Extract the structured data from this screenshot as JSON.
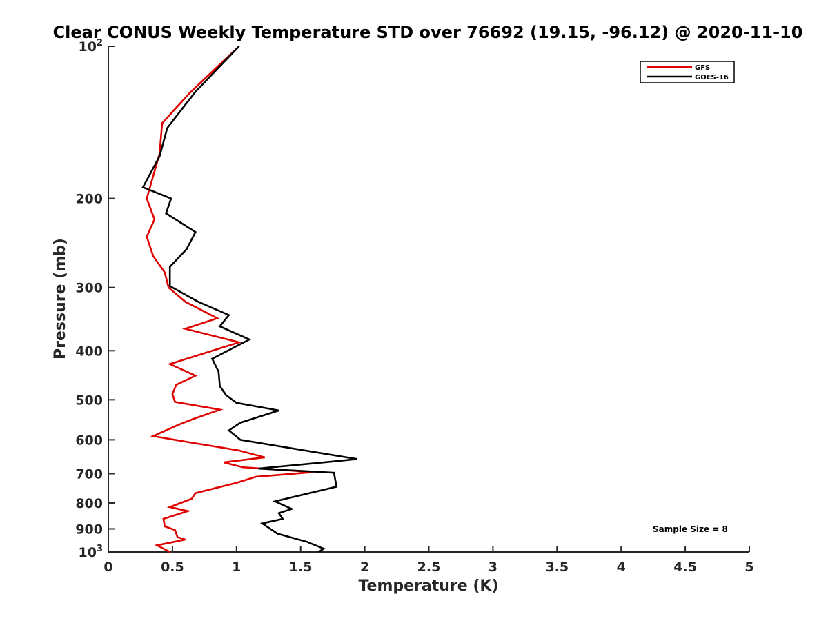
{
  "chart_data": {
    "type": "line",
    "title": "Clear CONUS Weekly Temperature STD over 76692 (19.15, -96.12) @ 2020-11-10",
    "xlabel": "Temperature (K)",
    "ylabel": "Pressure (mb)",
    "xlim": [
      0,
      5
    ],
    "ylim": [
      100,
      1000
    ],
    "yscale": "log",
    "yreversed": true,
    "x_ticks": [
      0,
      0.5,
      1,
      1.5,
      2,
      2.5,
      3,
      3.5,
      4,
      4.5,
      5
    ],
    "x_tick_labels": [
      "0",
      "0.5",
      "1",
      "1.5",
      "2",
      "2.5",
      "3",
      "3.5",
      "4",
      "4.5",
      "5"
    ],
    "y_ticks": [
      {
        "value": 100,
        "base": "10",
        "exp": "2"
      },
      {
        "value": 200,
        "label": "200"
      },
      {
        "value": 300,
        "label": "300"
      },
      {
        "value": 400,
        "label": "400"
      },
      {
        "value": 500,
        "label": "500"
      },
      {
        "value": 600,
        "label": "600"
      },
      {
        "value": 700,
        "label": "700"
      },
      {
        "value": 800,
        "label": "800"
      },
      {
        "value": 900,
        "label": "900"
      },
      {
        "value": 1000,
        "base": "10",
        "exp": "3"
      }
    ],
    "grid": false,
    "legend_position": "top-right",
    "series": [
      {
        "name": "GFS",
        "color": "#e00000",
        "points": [
          [
            1.02,
            100
          ],
          [
            0.63,
            124
          ],
          [
            0.42,
            142
          ],
          [
            0.4,
            163
          ],
          [
            0.3,
            200
          ],
          [
            0.36,
            220
          ],
          [
            0.3,
            238
          ],
          [
            0.35,
            260
          ],
          [
            0.44,
            280
          ],
          [
            0.47,
            300
          ],
          [
            0.6,
            320
          ],
          [
            0.85,
            345
          ],
          [
            0.6,
            362
          ],
          [
            1.02,
            385
          ],
          [
            0.48,
            425
          ],
          [
            0.68,
            448
          ],
          [
            0.53,
            467
          ],
          [
            0.5,
            487
          ],
          [
            0.52,
            505
          ],
          [
            0.87,
            523
          ],
          [
            0.66,
            546
          ],
          [
            0.55,
            560
          ],
          [
            0.35,
            590
          ],
          [
            0.6,
            605
          ],
          [
            1.02,
            630
          ],
          [
            1.22,
            650
          ],
          [
            0.9,
            665
          ],
          [
            1.05,
            680
          ],
          [
            1.6,
            695
          ],
          [
            1.15,
            710
          ],
          [
            1.0,
            730
          ],
          [
            0.68,
            765
          ],
          [
            0.65,
            785
          ],
          [
            0.48,
            815
          ],
          [
            0.62,
            830
          ],
          [
            0.43,
            860
          ],
          [
            0.44,
            890
          ],
          [
            0.52,
            905
          ],
          [
            0.54,
            935
          ],
          [
            0.6,
            945
          ],
          [
            0.38,
            970
          ],
          [
            0.48,
            1000
          ]
        ]
      },
      {
        "name": "GOES-16",
        "color": "#000000",
        "points": [
          [
            1.02,
            100
          ],
          [
            0.68,
            123
          ],
          [
            0.46,
            145
          ],
          [
            0.4,
            165
          ],
          [
            0.27,
            190
          ],
          [
            0.49,
            200
          ],
          [
            0.45,
            214
          ],
          [
            0.68,
            233
          ],
          [
            0.61,
            252
          ],
          [
            0.48,
            273
          ],
          [
            0.48,
            298
          ],
          [
            0.7,
            320
          ],
          [
            0.94,
            340
          ],
          [
            0.87,
            358
          ],
          [
            1.1,
            380
          ],
          [
            0.81,
            415
          ],
          [
            0.86,
            440
          ],
          [
            0.87,
            470
          ],
          [
            0.92,
            490
          ],
          [
            1.0,
            507
          ],
          [
            1.33,
            525
          ],
          [
            1.03,
            555
          ],
          [
            0.94,
            575
          ],
          [
            1.03,
            600
          ],
          [
            1.94,
            655
          ],
          [
            1.6,
            668
          ],
          [
            1.17,
            684
          ],
          [
            1.76,
            697
          ],
          [
            1.78,
            743
          ],
          [
            1.3,
            794
          ],
          [
            1.43,
            822
          ],
          [
            1.33,
            838
          ],
          [
            1.36,
            860
          ],
          [
            1.2,
            878
          ],
          [
            1.32,
            920
          ],
          [
            1.55,
            955
          ],
          [
            1.68,
            985
          ],
          [
            1.64,
            1000
          ]
        ]
      }
    ],
    "annotation": "Sample Size = 8"
  }
}
